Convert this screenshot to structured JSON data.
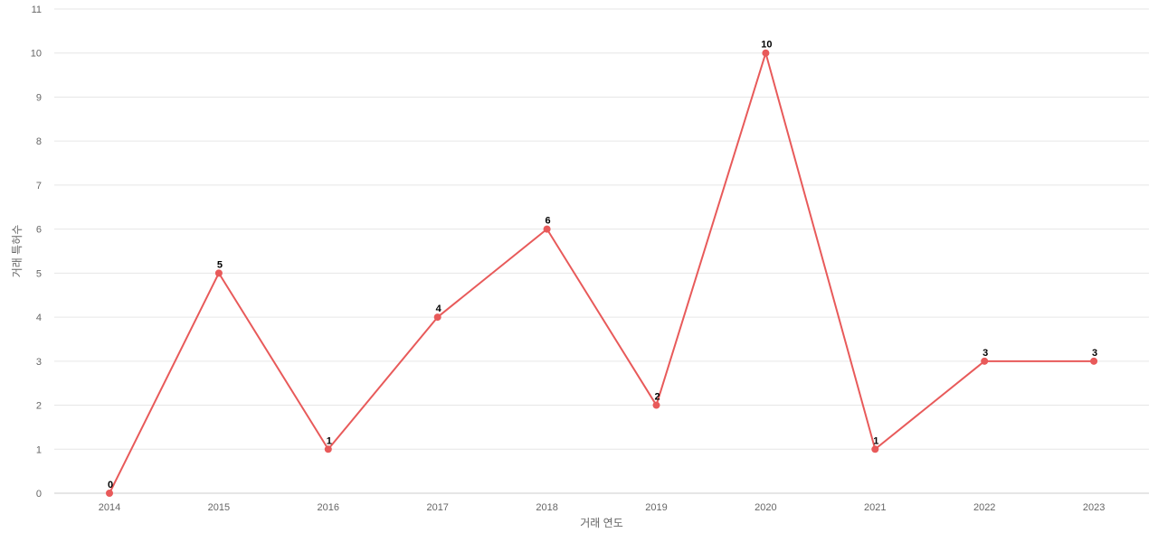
{
  "chart_data": {
    "type": "line",
    "x": [
      "2014",
      "2015",
      "2016",
      "2017",
      "2018",
      "2019",
      "2020",
      "2021",
      "2022",
      "2023"
    ],
    "series": [
      {
        "values": [
          0,
          5,
          1,
          4,
          6,
          2,
          10,
          1,
          3,
          3
        ],
        "color": "#e85a5a"
      }
    ],
    "xlabel": "거래 연도",
    "ylabel": "거래 특허수",
    "ylim": [
      0,
      11
    ],
    "yticks": [
      0,
      1,
      2,
      3,
      4,
      5,
      6,
      7,
      8,
      9,
      10,
      11
    ],
    "grid": true,
    "data_labels": true
  }
}
